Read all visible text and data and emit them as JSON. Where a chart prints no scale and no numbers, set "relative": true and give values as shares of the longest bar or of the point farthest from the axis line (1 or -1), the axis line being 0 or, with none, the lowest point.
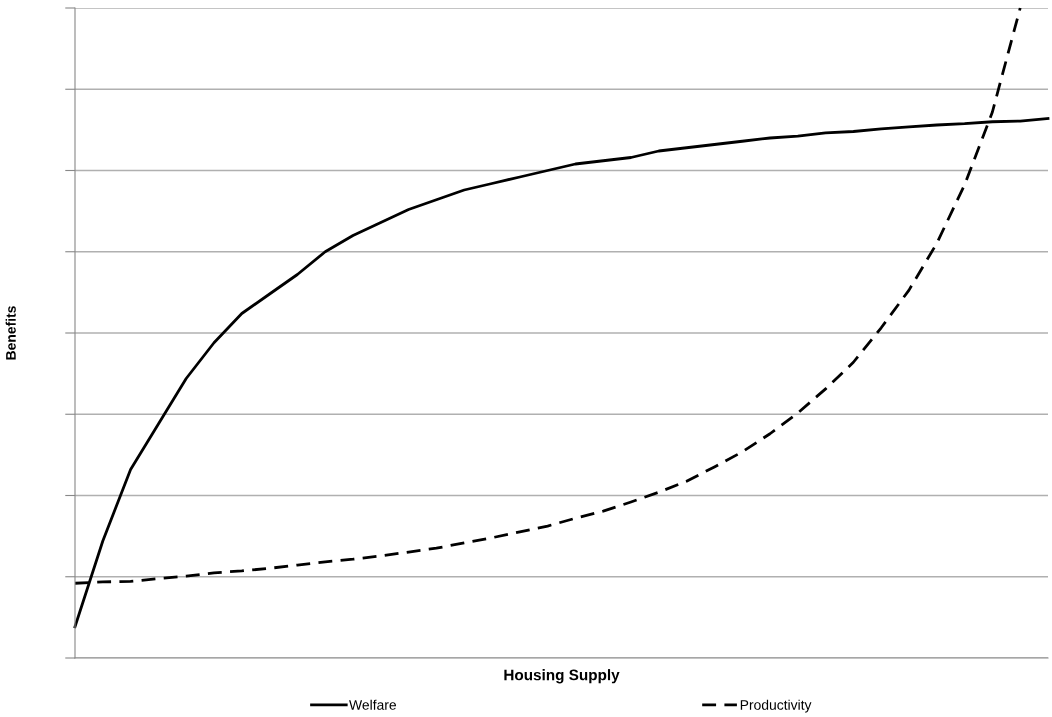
{
  "chart_data": {
    "type": "line",
    "relative": true,
    "xlabel": "Housing Supply",
    "ylabel": "Benefits",
    "grid": "y",
    "legend": "bottom",
    "tick_labels": false,
    "marker": "none",
    "categories": [
      null,
      null,
      null,
      null,
      null,
      null,
      null,
      null,
      null,
      null,
      null,
      null,
      null,
      null,
      null,
      null,
      null,
      null,
      null,
      null,
      null,
      null,
      null,
      null,
      null,
      null,
      null,
      null,
      null,
      null,
      null,
      null,
      null,
      null,
      null,
      null
    ],
    "series": [
      {
        "name": "Welfare",
        "color": "#000000",
        "line_style": "solid",
        "values": [
          0.048,
          0.18,
          0.29,
          0.36,
          0.43,
          0.485,
          0.53,
          0.56,
          0.59,
          0.625,
          0.65,
          0.67,
          0.69,
          0.705,
          0.72,
          0.73,
          0.74,
          0.75,
          0.76,
          0.765,
          0.77,
          0.78,
          0.785,
          0.79,
          0.795,
          0.8,
          0.803,
          0.808,
          0.81,
          0.814,
          0.817,
          0.82,
          0.822,
          0.825,
          0.826,
          0.83
        ]
      },
      {
        "name": "Productivity",
        "color": "#000000",
        "line_style": "dashed",
        "values": [
          0.115,
          0.117,
          0.118,
          0.122,
          0.126,
          0.131,
          0.134,
          0.138,
          0.143,
          0.148,
          0.152,
          0.157,
          0.163,
          0.169,
          0.177,
          0.185,
          0.194,
          0.203,
          0.215,
          0.226,
          0.24,
          0.255,
          0.272,
          0.294,
          0.317,
          0.345,
          0.377,
          0.414,
          0.455,
          0.508,
          0.566,
          0.638,
          0.728,
          0.84,
          1.0,
          null
        ]
      }
    ]
  }
}
